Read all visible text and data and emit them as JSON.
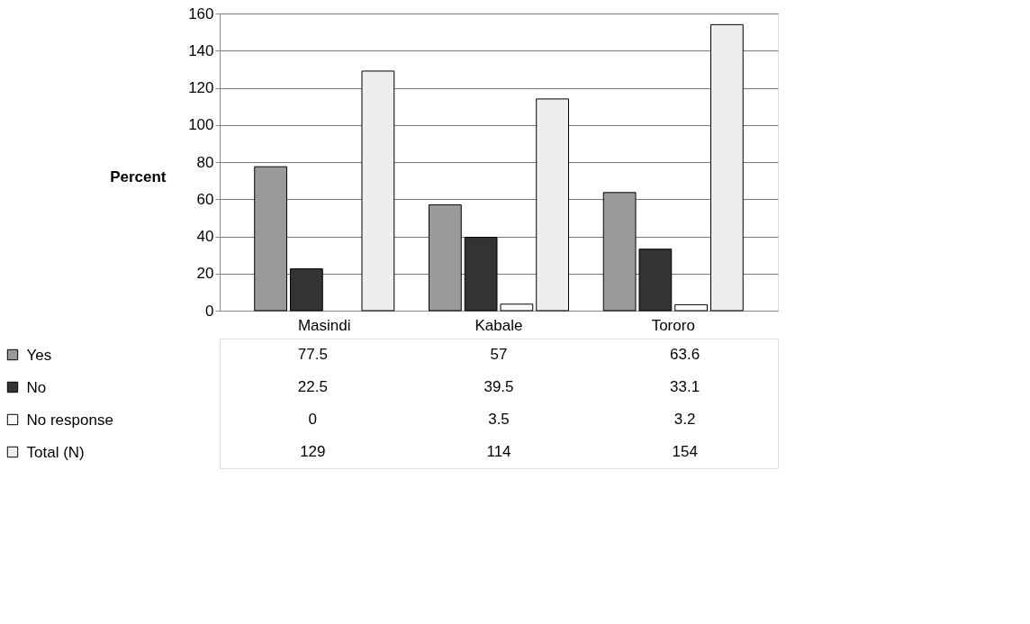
{
  "chart_data": {
    "type": "bar",
    "ylabel": "Percent",
    "categories": [
      "Masindi",
      "Kabale",
      "Tororo"
    ],
    "series": [
      {
        "name": "Yes",
        "color": "#9a9a9a",
        "values": [
          77.5,
          57,
          63.6
        ]
      },
      {
        "name": "No",
        "color": "#333333",
        "values": [
          22.5,
          39.5,
          33.1
        ]
      },
      {
        "name": "No response",
        "color": "#ffffff",
        "values": [
          0,
          3.5,
          3.2
        ]
      },
      {
        "name": "Total (N)",
        "color": "#eeeeee",
        "values": [
          129,
          114,
          154
        ]
      }
    ],
    "ylim": [
      0,
      160
    ],
    "yticks": [
      0,
      20,
      40,
      60,
      80,
      100,
      120,
      140,
      160
    ],
    "grid": "y",
    "legend": "bottom",
    "data_labels": true
  }
}
